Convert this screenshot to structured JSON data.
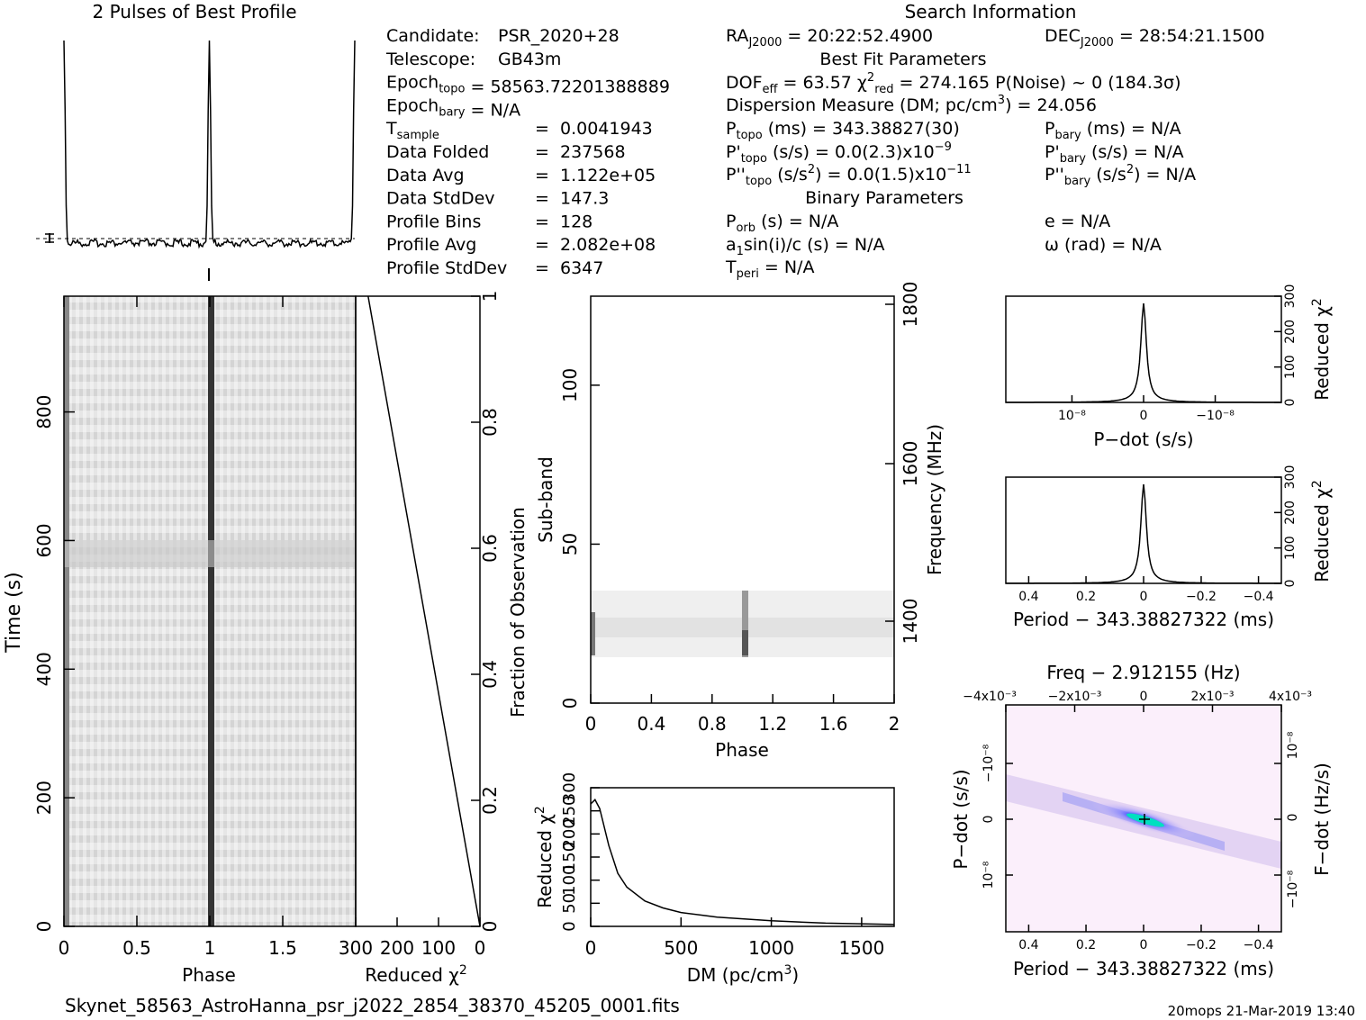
{
  "title_profile": "2 Pulses of Best Profile",
  "title_search": "Search Information",
  "filename": "Skynet_58563_AstroHanna_psr_j2022_2854_38370_45205_0001.fits",
  "footer_right": "20mops 21-Mar-2019 13:40",
  "info_col1": [
    {
      "label": "Candidate:",
      "sub": "",
      "eq": "",
      "value": "PSR_2020+28"
    },
    {
      "label": "Telescope:",
      "sub": "",
      "eq": "",
      "value": "GB43m"
    },
    {
      "label": "Epoch",
      "sub": "topo",
      "eq": "=",
      "value": "58563.72201388889"
    },
    {
      "label": "Epoch",
      "sub": "bary",
      "eq": "=",
      "value": "N/A"
    },
    {
      "label": "T",
      "sub": "sample",
      "eq": "=",
      "value": "0.0041943"
    },
    {
      "label": "Data Folded",
      "sub": "",
      "eq": "=",
      "value": "237568"
    },
    {
      "label": "Data Avg",
      "sub": "",
      "eq": "=",
      "value": "1.122e+05"
    },
    {
      "label": "Data StdDev",
      "sub": "",
      "eq": "=",
      "value": "147.3"
    },
    {
      "label": "Profile Bins",
      "sub": "",
      "eq": "=",
      "value": "128"
    },
    {
      "label": "Profile Avg",
      "sub": "",
      "eq": "=",
      "value": "2.082e+08"
    },
    {
      "label": "Profile StdDev",
      "sub": "",
      "eq": "=",
      "value": "6347"
    }
  ],
  "info_col2": {
    "ra": "RA_J2000 = 20:22:52.4900",
    "best_fit_header": "Best Fit Parameters",
    "dof": "DOF_eff = 63.57  χ²_red = 274.165  P(Noise) ~ 0  (184.3σ)",
    "dm": "Dispersion Measure (DM; pc/cm³) = 24.056",
    "ptopo": "P_topo (ms) = 343.38827(30)",
    "pdot_topo": "P'_topo (s/s) = 0.0(2.3)x10⁻⁹",
    "pddot_topo": "P''_topo (s/s²) = 0.0(1.5)x10⁻¹¹",
    "binary_header": "Binary Parameters",
    "porb": "P_orb (s) = N/A",
    "a1sini": "a₁sin(i)/c (s) = N/A",
    "tperi": "T_peri = N/A"
  },
  "info_col3": {
    "dec": "DEC_J2000 = 28:54:21.1500",
    "pbary": "P_bary (ms) = N/A",
    "pdot_bary": "P'_bary (s/s) = N/A",
    "pddot_bary": "P''_bary (s/s²) = N/A",
    "e": "e = N/A",
    "omega": "ω (rad) = N/A"
  },
  "chart_data": [
    {
      "id": "profile",
      "type": "line",
      "title": "2 Pulses of Best Profile",
      "xlabel": "",
      "ylabel": "",
      "description_values": {
        "pulse_phases": [
          0.0,
          1.0,
          2.0
        ]
      },
      "series": [
        {
          "values": "two pulse peaks at phase 0 and 1, flat baseline"
        }
      ]
    },
    {
      "id": "time_phase",
      "type": "heatmap",
      "xlabel": "Phase",
      "ylabel": "Time (s)",
      "xlim": [
        0,
        2
      ],
      "ylim": [
        0,
        980
      ],
      "x_ticks": [
        "0",
        "0.5",
        "1",
        "1.5"
      ],
      "y_ticks": [
        "0",
        "200",
        "400",
        "600",
        "800"
      ]
    },
    {
      "id": "chi_vs_time",
      "type": "line",
      "xlabel": "Reduced χ²",
      "ylabel_right": "Fraction of Observation",
      "xlim": [
        300,
        0
      ],
      "ylim": [
        0,
        1
      ],
      "x_ticks": [
        "300",
        "200",
        "100",
        "0"
      ],
      "y_ticks": [
        "0",
        "0.2",
        "0.4",
        "0.6",
        "0.8",
        "1"
      ],
      "x": [
        0,
        270
      ],
      "y": [
        0,
        1
      ]
    },
    {
      "id": "subband_phase",
      "type": "heatmap",
      "xlabel": "Phase",
      "ylabel": "Sub-band",
      "ylabel_right": "Frequency (MHz)",
      "xlim": [
        0,
        2
      ],
      "ylim": [
        0,
        128
      ],
      "x_ticks": [
        "0",
        "0.4",
        "0.8",
        "1.2",
        "1.6",
        "2"
      ],
      "y_ticks": [
        "0",
        "50",
        "100"
      ],
      "right_ticks": [
        "1400",
        "1600",
        "1800"
      ],
      "signal_subbands": [
        14,
        35
      ]
    },
    {
      "id": "dm_curve",
      "type": "line",
      "xlabel": "DM (pc/cm³)",
      "ylabel": "Reduced χ²",
      "xlim": [
        0,
        1680
      ],
      "ylim": [
        0,
        300
      ],
      "x_ticks": [
        "0",
        "500",
        "1000",
        "1500"
      ],
      "y_ticks": [
        "0",
        "50",
        "100",
        "150",
        "200",
        "250",
        "300"
      ],
      "x": [
        0,
        24,
        50,
        100,
        150,
        200,
        300,
        400,
        500,
        700,
        1000,
        1300,
        1680
      ],
      "y": [
        265,
        274,
        255,
        175,
        115,
        85,
        55,
        40,
        30,
        20,
        12,
        7,
        4
      ]
    },
    {
      "id": "pdot_curve",
      "type": "line",
      "xlabel": "P-dot (s/s)",
      "ylabel_right": "Reduced χ²",
      "ylim": [
        0,
        300
      ],
      "x_ticks": [
        "10⁻⁸",
        "0",
        "−10⁻⁸"
      ],
      "y_ticks": [
        "0",
        "100",
        "200",
        "300"
      ],
      "peak": 274
    },
    {
      "id": "period_curve",
      "type": "line",
      "xlabel": "Period − 343.38827322 (ms)",
      "ylabel_right": "Reduced χ²",
      "xlim": [
        0.48,
        -0.48
      ],
      "ylim": [
        0,
        300
      ],
      "x_ticks": [
        "0.4",
        "0.2",
        "0",
        "−0.2",
        "−0.4"
      ],
      "y_ticks": [
        "0",
        "100",
        "200",
        "300"
      ],
      "peak": 274
    },
    {
      "id": "p_pdot_plane",
      "type": "heatmap",
      "title": "Freq − 2.912155 (Hz)",
      "xlabel": "Period − 343.38827322 (ms)",
      "ylabel": "P-dot (s/s)",
      "ylabel_right": "F-dot (Hz/s)",
      "x_ticks": [
        "0.4",
        "0.2",
        "0",
        "−0.2",
        "−0.4"
      ],
      "top_ticks": [
        "−4x10⁻³",
        "−2x10⁻³",
        "0",
        "2x10⁻³",
        "4x10⁻³"
      ],
      "y_ticks": [
        "−10⁻⁸",
        "0",
        "10⁻⁸"
      ],
      "right_ticks": [
        "10⁻⁸",
        "0",
        "−10⁻⁸"
      ]
    }
  ],
  "labels": {
    "phase": "Phase",
    "time": "Time (s)",
    "reduced_chi": "Reduced χ²",
    "fraction": "Fraction of Observation",
    "subband": "Sub-band",
    "frequency": "Frequency (MHz)",
    "dm": "DM (pc/cm³)",
    "pdot": "P−dot (s/s)",
    "period": "Period − 343.38827322 (ms)",
    "freq": "Freq − 2.912155 (Hz)",
    "fdot": "F−dot (Hz/s)"
  }
}
